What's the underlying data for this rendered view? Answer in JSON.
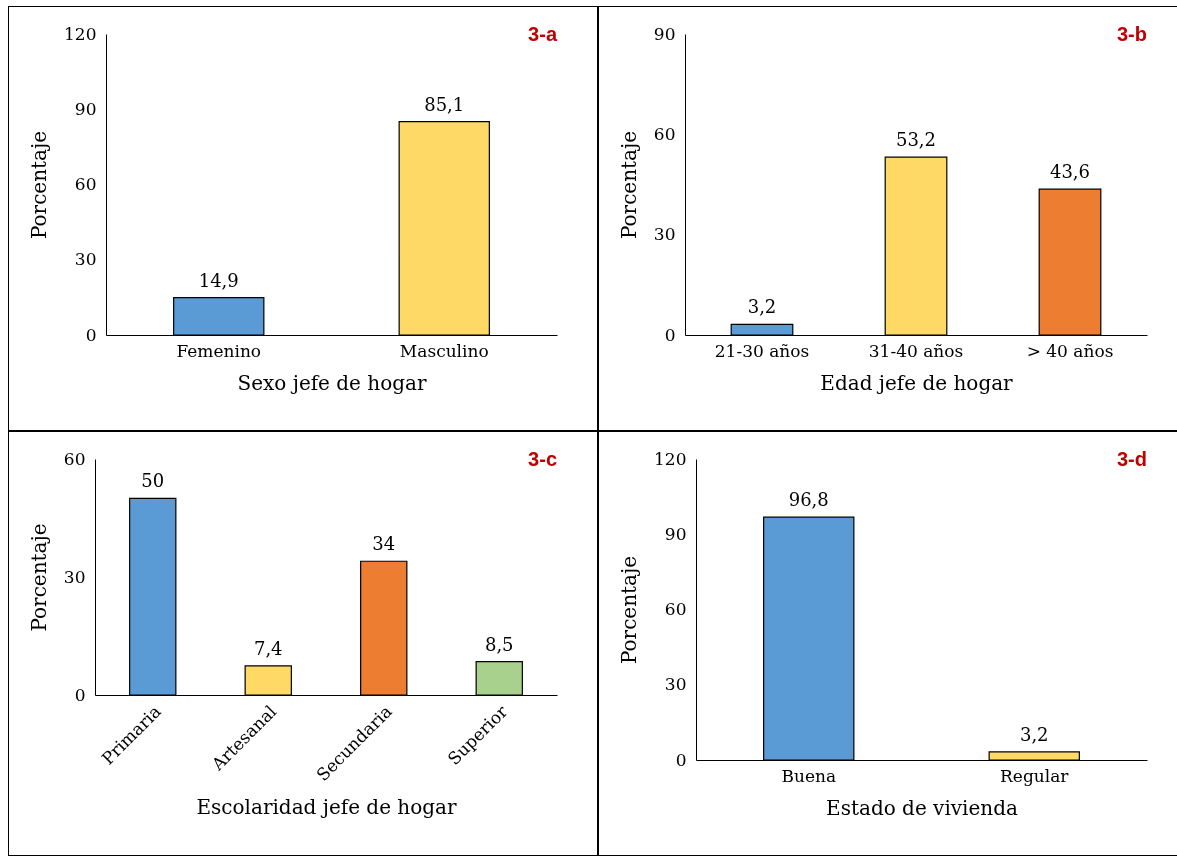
{
  "chart_data": [
    {
      "type": "bar",
      "title": "3-a",
      "xlabel": "Sexo jefe de hogar",
      "ylabel": "Porcentaje",
      "categories": [
        "Femenino",
        "Masculino"
      ],
      "values": [
        14.9,
        85.1
      ],
      "value_labels": [
        "14,9",
        "85,1"
      ],
      "colors": [
        "#5b9bd5",
        "#ffd966"
      ],
      "ylim": [
        0,
        120
      ],
      "yticks": [
        0,
        30,
        60,
        90,
        120
      ],
      "grid": false,
      "legend": false
    },
    {
      "type": "bar",
      "title": "3-b",
      "xlabel": "Edad jefe de hogar",
      "ylabel": "Porcentaje",
      "categories": [
        "21-30 años",
        "31-40 años",
        "> 40 años"
      ],
      "values": [
        3.2,
        53.2,
        43.6
      ],
      "value_labels": [
        "3,2",
        "53,2",
        "43,6"
      ],
      "colors": [
        "#5b9bd5",
        "#ffd966",
        "#ed7d31"
      ],
      "ylim": [
        0,
        90
      ],
      "yticks": [
        0,
        30,
        60,
        90
      ],
      "grid": false,
      "legend": false
    },
    {
      "type": "bar",
      "title": "3-c",
      "xlabel": "Escolaridad jefe de hogar",
      "ylabel": "Porcentaje",
      "categories": [
        "Primaria",
        "Artesanal",
        "Secundaria",
        "Superior"
      ],
      "values": [
        50,
        7.4,
        34,
        8.5
      ],
      "value_labels": [
        "50",
        "7,4",
        "34",
        "8,5"
      ],
      "colors": [
        "#5b9bd5",
        "#ffd966",
        "#ed7d31",
        "#a9d18e"
      ],
      "ylim": [
        0,
        60
      ],
      "yticks": [
        0,
        30,
        60
      ],
      "grid": false,
      "legend": false
    },
    {
      "type": "bar",
      "title": "3-d",
      "xlabel": "Estado de vivienda",
      "ylabel": "Porcentaje",
      "categories": [
        "Buena",
        "Regular"
      ],
      "values": [
        96.8,
        3.2
      ],
      "value_labels": [
        "96,8",
        "3,2"
      ],
      "colors": [
        "#5b9bd5",
        "#ffd966"
      ],
      "ylim": [
        0,
        120
      ],
      "yticks": [
        0,
        30,
        60,
        90,
        120
      ],
      "grid": false,
      "legend": false
    }
  ]
}
